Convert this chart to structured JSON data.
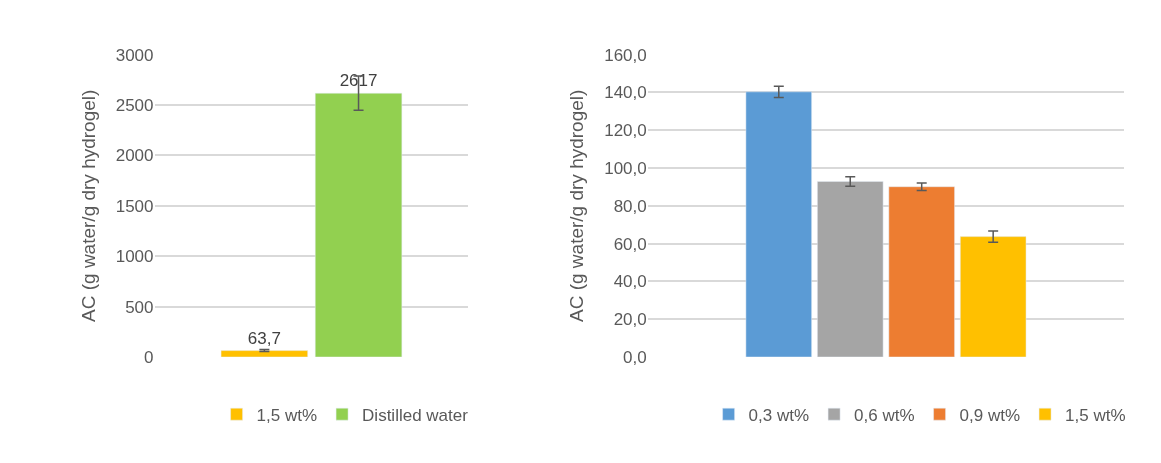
{
  "chart_data": [
    {
      "type": "bar",
      "ylabel": "AC (g water/g dry hydrogel)",
      "categories": [
        null
      ],
      "series": [
        {
          "name": "1,5 wt%",
          "color": "#ffc000",
          "values": [
            63.7
          ],
          "errors": [
            10
          ],
          "value_labels": [
            "63,7"
          ]
        },
        {
          "name": "Distilled water",
          "color": "#92d050",
          "values": [
            2617
          ],
          "errors": [
            170
          ],
          "value_labels": [
            "2617"
          ]
        }
      ],
      "ylim": [
        0,
        3000
      ],
      "yticks": [
        0,
        500,
        1000,
        1500,
        2000,
        2500,
        3000
      ],
      "grid": "y",
      "legend": "bottom"
    },
    {
      "type": "bar",
      "ylabel": "AC (g water/g dry hydrogel)",
      "categories": [
        null
      ],
      "series": [
        {
          "name": "0,3 wt%",
          "color": "#5b9bd5",
          "values": [
            140.3
          ],
          "errors": [
            3
          ]
        },
        {
          "name": "0,6 wt%",
          "color": "#a5a5a5",
          "values": [
            92.9
          ],
          "errors": [
            2.5
          ]
        },
        {
          "name": "0,9 wt%",
          "color": "#ed7d31",
          "values": [
            90.1
          ],
          "errors": [
            2
          ]
        },
        {
          "name": "1,5 wt%",
          "color": "#ffc000",
          "values": [
            63.7
          ],
          "errors": [
            3
          ]
        }
      ],
      "ylim": [
        0,
        160
      ],
      "yticks": [
        {
          "value": 0,
          "label": "0,0"
        },
        {
          "value": 20,
          "label": "20,0"
        },
        {
          "value": 40,
          "label": "40,0"
        },
        {
          "value": 60,
          "label": "60,0"
        },
        {
          "value": 80,
          "label": "80,0"
        },
        {
          "value": 100,
          "label": "100,0"
        },
        {
          "value": 120,
          "label": "120,0"
        },
        {
          "value": 140,
          "label": "140,0"
        },
        {
          "value": 160,
          "label": "160,0"
        }
      ],
      "grid": "y",
      "legend": "bottom"
    }
  ]
}
